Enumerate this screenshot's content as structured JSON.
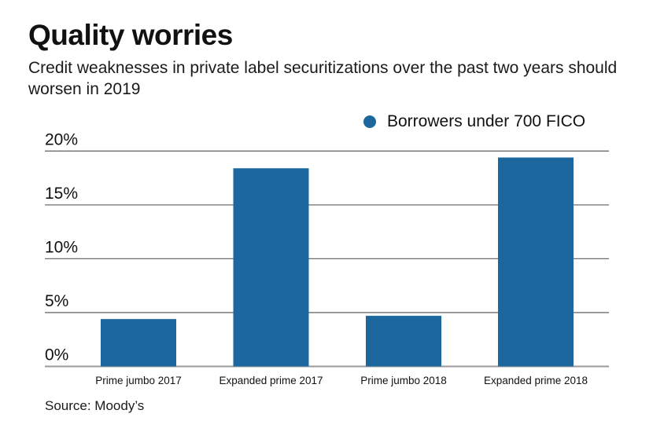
{
  "chart_data": {
    "type": "bar",
    "title": "Quality worries",
    "subtitle": "Credit weaknesses in private label securitizations over the past two years should worsen in 2019",
    "categories": [
      "Prime jumbo 2017",
      "Expanded prime 2017",
      "Prime jumbo 2018",
      "Expanded prime 2018"
    ],
    "series": [
      {
        "name": "Borrowers under 700 FICO",
        "color": "#1c689e",
        "values": [
          4.4,
          18.4,
          4.7,
          19.4
        ]
      }
    ],
    "xlabel": "",
    "ylabel": "",
    "ylim": [
      0,
      20
    ],
    "yticks": [
      0,
      5,
      10,
      15,
      20
    ],
    "ytick_labels": [
      "0%",
      "5%",
      "10%",
      "15%",
      "20%"
    ],
    "grid": true,
    "legend_position": "top-right",
    "source": "Source: Moody’s"
  }
}
